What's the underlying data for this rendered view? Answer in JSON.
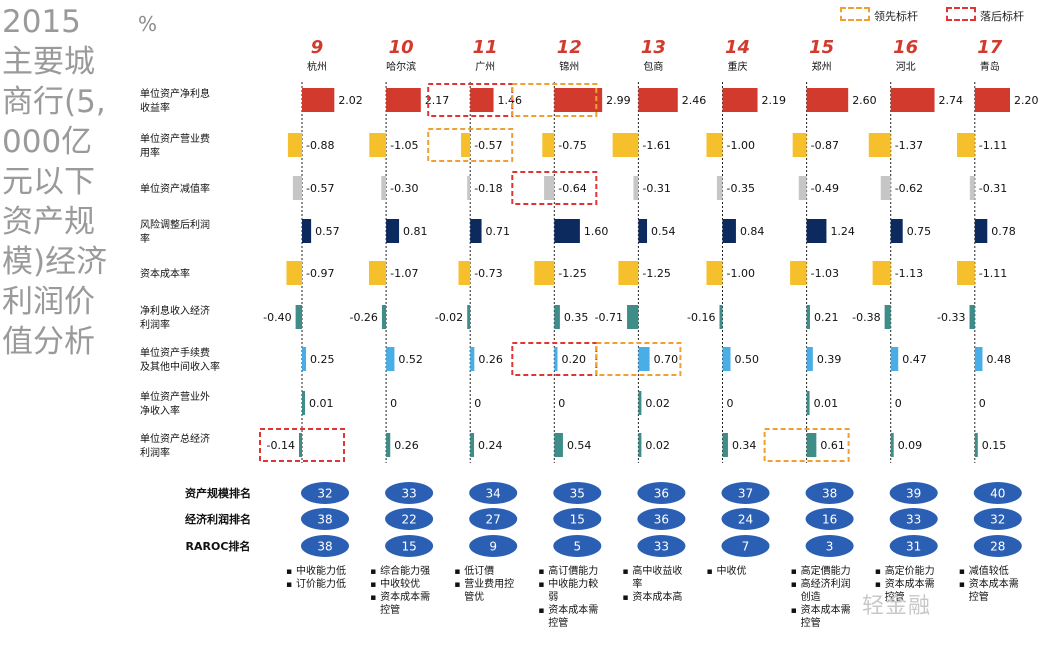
{
  "title": "2015主要城商行(5,000亿元以下资产规模)经济利润价值分析",
  "unit": "%",
  "legend": [
    {
      "label": "领先标杆",
      "color": "#f0a032",
      "style": "dashed"
    },
    {
      "label": "落后标杆",
      "color": "#e03535",
      "style": "dashed"
    }
  ],
  "watermark": "轻金融",
  "colors": {
    "red": "#d23a2e",
    "yellow": "#f6bf2c",
    "gray": "#c6c6c6",
    "navy": "#0d2a5e",
    "teal": "#3f8d88",
    "lightblue": "#4aaee6",
    "pill": "#2b5fb3",
    "accent": "#d33a2e"
  },
  "chart_data": {
    "type": "bar",
    "banks": [
      {
        "num": "9",
        "name": "杭州"
      },
      {
        "num": "10",
        "name": "哈尔滨"
      },
      {
        "num": "11",
        "name": "广州"
      },
      {
        "num": "12",
        "name": "锦州"
      },
      {
        "num": "13",
        "name": "包商"
      },
      {
        "num": "14",
        "name": "重庆"
      },
      {
        "num": "15",
        "name": "郑州"
      },
      {
        "num": "16",
        "name": "河北"
      },
      {
        "num": "17",
        "name": "青岛"
      }
    ],
    "metrics": [
      {
        "label": "单位资产净利息收益率",
        "color": "red",
        "values": [
          2.02,
          2.17,
          1.46,
          2.99,
          2.46,
          2.19,
          2.6,
          2.74,
          2.2
        ],
        "labels": [
          "2.02",
          "2.17",
          "1.46",
          "2.99",
          "2.46",
          "2.19",
          "2.60",
          "2.74",
          "2.20"
        ]
      },
      {
        "label": "单位资产营业费用率",
        "color": "yellow",
        "values": [
          -0.88,
          -1.05,
          -0.57,
          -0.75,
          -1.61,
          -1.0,
          -0.87,
          -1.37,
          -1.11
        ],
        "labels": [
          "-0.88",
          "-1.05",
          "-0.57",
          "-0.75",
          "-1.61",
          "-1.00",
          "-0.87",
          "-1.37",
          "-1.11"
        ]
      },
      {
        "label": "单位资产减值率",
        "color": "gray",
        "values": [
          -0.57,
          -0.3,
          -0.18,
          -0.64,
          -0.31,
          -0.35,
          -0.49,
          -0.62,
          -0.31
        ],
        "labels": [
          "-0.57",
          "-0.30",
          "-0.18",
          "-0.64",
          "-0.31",
          "-0.35",
          "-0.49",
          "-0.62",
          "-0.31"
        ]
      },
      {
        "label": "风险调整后利润率",
        "color": "navy",
        "values": [
          0.57,
          0.81,
          0.71,
          1.6,
          0.54,
          0.84,
          1.24,
          0.75,
          0.78
        ],
        "labels": [
          "0.57",
          "0.81",
          "0.71",
          "1.60",
          "0.54",
          "0.84",
          "1.24",
          "0.75",
          "0.78"
        ]
      },
      {
        "label": "资本成本率",
        "color": "yellow",
        "values": [
          -0.97,
          -1.07,
          -0.73,
          -1.25,
          -1.25,
          -1.0,
          -1.03,
          -1.13,
          -1.11
        ],
        "labels": [
          "-0.97",
          "-1.07",
          "-0.73",
          "-1.25",
          "-1.25",
          "-1.00",
          "-1.03",
          "-1.13",
          "-1.11"
        ]
      },
      {
        "label": "净利息收入经济利润率",
        "color": "teal",
        "values": [
          -0.4,
          -0.26,
          -0.02,
          0.35,
          -0.71,
          -0.16,
          0.21,
          -0.38,
          -0.33
        ],
        "labels": [
          "-0.40",
          "-0.26",
          "-0.02",
          "0.35",
          "-0.71",
          "-0.16",
          "0.21",
          "-0.38",
          "-0.33"
        ]
      },
      {
        "label": "单位资产手续费及其他中间收入率",
        "color": "lightblue",
        "values": [
          0.25,
          0.52,
          0.26,
          0.2,
          0.7,
          0.5,
          0.39,
          0.47,
          0.48
        ],
        "labels": [
          "0.25",
          "0.52",
          "0.26",
          "0.20",
          "0.70",
          "0.50",
          "0.39",
          "0.47",
          "0.48"
        ]
      },
      {
        "label": "单位资产营业外净收入率",
        "color": "teal",
        "values": [
          0.01,
          0,
          0,
          0,
          0.02,
          0,
          0.01,
          0,
          0
        ],
        "labels": [
          "0.01",
          "0",
          "0",
          "0",
          "0.02",
          "0",
          "0.01",
          "0",
          "0"
        ]
      },
      {
        "label": "单位资产总经济利润率",
        "color": "teal",
        "values": [
          -0.14,
          0.26,
          0.24,
          0.54,
          0.02,
          0.34,
          0.61,
          0.09,
          0.15
        ],
        "labels": [
          "-0.14",
          "0.26",
          "0.24",
          "0.54",
          "0.02",
          "0.34",
          "0.61",
          "0.09",
          "0.15"
        ]
      }
    ],
    "highlights": [
      {
        "metric": 0,
        "bank": 2,
        "type": "lag"
      },
      {
        "metric": 0,
        "bank": 3,
        "type": "lead"
      },
      {
        "metric": 1,
        "bank": 2,
        "type": "lead"
      },
      {
        "metric": 2,
        "bank": 3,
        "type": "lag"
      },
      {
        "metric": 6,
        "bank": 3,
        "type": "lag"
      },
      {
        "metric": 6,
        "bank": 4,
        "type": "lead"
      },
      {
        "metric": 8,
        "bank": 0,
        "type": "lag"
      },
      {
        "metric": 8,
        "bank": 6,
        "type": "lead"
      }
    ],
    "rankings": [
      {
        "label": "资产规模排名",
        "values": [
          "32",
          "33",
          "34",
          "35",
          "36",
          "37",
          "38",
          "39",
          "40"
        ]
      },
      {
        "label": "经济利润排名",
        "values": [
          "38",
          "22",
          "27",
          "15",
          "36",
          "24",
          "16",
          "33",
          "32"
        ]
      },
      {
        "label": "RAROC排名",
        "values": [
          "38",
          "15",
          "9",
          "5",
          "33",
          "7",
          "3",
          "31",
          "28"
        ]
      }
    ],
    "notes": [
      [
        "中收能力低",
        "订价能力低"
      ],
      [
        "综合能力强",
        "中收较优",
        "资本成本需控管"
      ],
      [
        "低订價",
        "营业费用控管优"
      ],
      [
        "高订價能力",
        "中收能力較弱",
        "资本成本需控管"
      ],
      [
        "高中收益收率",
        "资本成本高"
      ],
      [
        "中收优"
      ],
      [
        "高定價能力",
        "高经济利润创造",
        "资本成本需控管"
      ],
      [
        "高定价能力",
        "资本成本需控管"
      ],
      [
        "减值较低",
        "资本成本需控管"
      ]
    ]
  }
}
